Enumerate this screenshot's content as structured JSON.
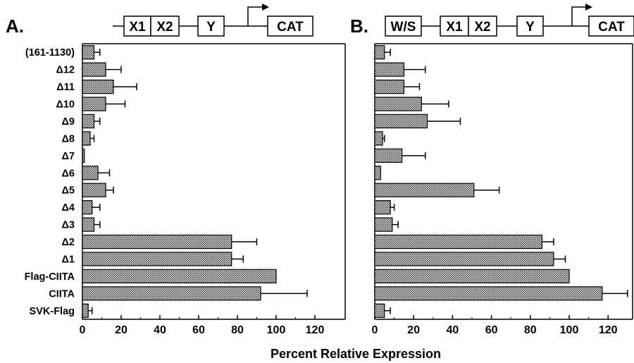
{
  "xlabel": "Percent Relative Expression",
  "chart_data": [
    {
      "type": "bar",
      "orientation": "horizontal",
      "panel_label": "A.",
      "construct": [
        "X1",
        "X2",
        "Y",
        "CAT"
      ],
      "categories": [
        "(161-1130)",
        "Δ12",
        "Δ11",
        "Δ10",
        "Δ9",
        "Δ8",
        "Δ7",
        "Δ6",
        "Δ5",
        "Δ4",
        "Δ3",
        "Δ2",
        "Δ1",
        "Flag-CIITA",
        "CIITA",
        "SVK-Flag"
      ],
      "values": [
        6,
        12,
        16,
        12,
        6,
        4,
        1,
        8,
        12,
        5,
        6,
        77,
        77,
        100,
        92,
        3
      ],
      "errors": [
        3,
        8,
        12,
        10,
        3,
        2,
        0,
        6,
        4,
        4,
        3,
        13,
        6,
        0,
        24,
        2
      ],
      "xticks": [
        0,
        20,
        40,
        60,
        80,
        100,
        120
      ],
      "xlim": [
        0,
        135
      ],
      "grid": false
    },
    {
      "type": "bar",
      "orientation": "horizontal",
      "panel_label": "B.",
      "construct": [
        "W/S",
        "X1",
        "X2",
        "Y",
        "CAT"
      ],
      "categories": [
        "(161-1130)",
        "Δ12",
        "Δ11",
        "Δ10",
        "Δ9",
        "Δ8",
        "Δ7",
        "Δ6",
        "Δ5",
        "Δ4",
        "Δ3",
        "Δ2",
        "Δ1",
        "Flag-CIITA",
        "CIITA",
        "SVK-Flag"
      ],
      "values": [
        5,
        15,
        15,
        24,
        27,
        4,
        14,
        3,
        51,
        8,
        9,
        86,
        92,
        100,
        117,
        5
      ],
      "errors": [
        3,
        11,
        8,
        14,
        17,
        1,
        12,
        0,
        13,
        2,
        3,
        6,
        6,
        0,
        13,
        3
      ],
      "xticks": [
        0,
        20,
        40,
        60,
        80,
        100,
        120
      ],
      "xlim": [
        0,
        133
      ],
      "grid": false
    }
  ]
}
